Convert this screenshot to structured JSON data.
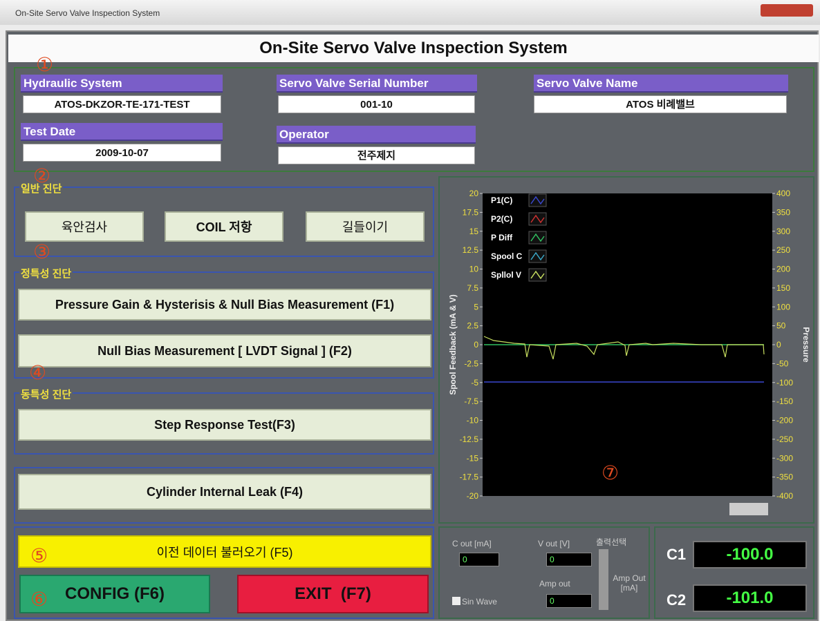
{
  "window": {
    "title": "On-Site Servo Valve Inspection System"
  },
  "header": {
    "title": "On-Site Servo Valve Inspection System"
  },
  "markers": [
    "①",
    "②",
    "③",
    "④",
    "⑤",
    "⑥",
    "⑦"
  ],
  "info": {
    "hydraulic_system": {
      "label": "Hydraulic System",
      "value": "ATOS-DKZOR-TE-171-TEST"
    },
    "test_date": {
      "label": "Test Date",
      "value": "2009-10-07"
    },
    "serial_number": {
      "label": "Servo Valve Serial Number",
      "value": "001-10"
    },
    "operator": {
      "label": "Operator",
      "value": "전주제지"
    },
    "valve_name": {
      "label": "Servo Valve Name",
      "value": "ATOS 비례밸브"
    }
  },
  "general": {
    "title": "일반 진단",
    "buttons": [
      "육안검사",
      "COIL 저항",
      "길들이기"
    ]
  },
  "static": {
    "title": "정특성 진단",
    "buttons": [
      "Pressure Gain & Hysterisis & Null Bias Measurement (F1)",
      "Null Bias Measurement [ LVDT Signal ] (F2)"
    ]
  },
  "dynamic": {
    "title": "동특성 진단",
    "buttons": [
      "Step Response Test(F3)"
    ]
  },
  "leak": {
    "button": "Cylinder Internal Leak (F4)"
  },
  "actions": {
    "load": "이전 데이터 불러오기 (F5)",
    "config": "CONFIG (F6)",
    "exit": "EXIT  (F7)"
  },
  "plot": {
    "y_label": "Spool Feedback (mA & V)",
    "y2_label": "Pressure",
    "ylim": [
      -20,
      20
    ],
    "yticks": [
      20,
      17.5,
      15,
      12.5,
      10,
      7.5,
      5,
      2.5,
      0,
      -2.5,
      -5,
      -7.5,
      -10,
      -12.5,
      -15,
      -17.5,
      -20
    ],
    "y2lim": [
      -400,
      400
    ],
    "y2ticks": [
      400,
      350,
      300,
      250,
      200,
      150,
      100,
      50,
      0,
      -50,
      -100,
      -150,
      -200,
      -250,
      -300,
      -350,
      -400
    ],
    "legend": [
      {
        "name": "P1(C)",
        "color": "#3a48d0"
      },
      {
        "name": "P2(C)",
        "color": "#d03030"
      },
      {
        "name": "P Diff",
        "color": "#30c060"
      },
      {
        "name": "Spool C",
        "color": "#3aa8c8"
      },
      {
        "name": "Spllol V",
        "color": "#c8e060"
      }
    ]
  },
  "output": {
    "c_out_label": "C out [mA]",
    "c_out": "0",
    "v_out_label": "V out [V]",
    "v_out": "0",
    "select_label": "출력선택",
    "amp_label": "Amp out",
    "amp": "0",
    "amp_out_label": "Amp Out [mA]",
    "sin_wave": "Sin Wave"
  },
  "readouts": [
    {
      "label": "C1",
      "value": "-100.0"
    },
    {
      "label": "C2",
      "value": "-101.0"
    }
  ]
}
